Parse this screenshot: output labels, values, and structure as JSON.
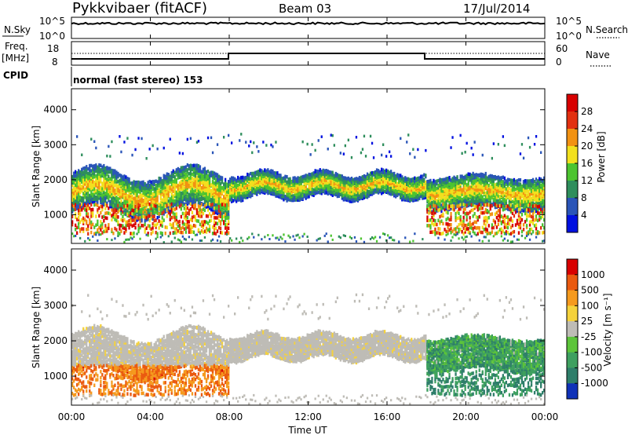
{
  "header": {
    "station": "Pykkvibaer (fitACF)",
    "beam": "Beam 03",
    "date": "17/Jul/2014"
  },
  "meta_panels": {
    "nsky": {
      "label": "N.Sky",
      "top": "10^5",
      "bottom": "10^0"
    },
    "nsearch": {
      "label": "N.Search",
      "top": "10^5",
      "bottom": "10^0"
    },
    "freq": {
      "label_line1": "Freq.",
      "label_line2": "[MHz]",
      "top": "18",
      "bottom": "8"
    },
    "nave": {
      "label": "Nave",
      "top": "60",
      "bottom": "0"
    },
    "cpid": {
      "label": "CPID",
      "text": "normal (fast stereo) 153"
    }
  },
  "chart_data": [
    {
      "type": "heatmap",
      "name": "power",
      "ylabel": "Slant Range [km]",
      "yticks": [
        "4000",
        "3000",
        "2000",
        "1000"
      ],
      "ylim": [
        180,
        4600
      ],
      "xlim": [
        0,
        24
      ],
      "colorbar": {
        "label": "Power [dB]",
        "ticks": [
          "28",
          "24",
          "20",
          "16",
          "12",
          "8",
          "4"
        ],
        "colors": [
          "#0010e0",
          "#2a55b8",
          "#2e8e5c",
          "#4cc430",
          "#f2e01e",
          "#f29212",
          "#e23010",
          "#d80000"
        ]
      },
      "echo_bands": [
        {
          "start_h": 0,
          "end_h": 24,
          "center_km": 1650,
          "width_km": 700
        },
        {
          "start_h": 0,
          "end_h": 8,
          "center_km": 900,
          "width_km": 350
        },
        {
          "start_h": 18,
          "end_h": 24,
          "center_km": 1000,
          "width_km": 400
        }
      ]
    },
    {
      "type": "heatmap",
      "name": "velocity",
      "ylabel": "Slant Range [km]",
      "yticks": [
        "4000",
        "3000",
        "2000",
        "1000"
      ],
      "ylim": [
        180,
        4600
      ],
      "xlim": [
        0,
        24
      ],
      "colorbar": {
        "label": "Velocity [m s⁻¹]",
        "ticks": [
          "1000",
          "500",
          "100",
          "25",
          "-25",
          "-100",
          "-500",
          "-1000"
        ],
        "colors": [
          "#1032b8",
          "#2e7e6a",
          "#3ea060",
          "#5cc43a",
          "#bebcb6",
          "#f5d23c",
          "#f59a1e",
          "#ea5a10",
          "#d80000"
        ]
      }
    }
  ],
  "xaxis": {
    "label": "Time UT",
    "ticks": [
      "00:00",
      "04:00",
      "08:00",
      "12:00",
      "16:00",
      "20:00",
      "00:00"
    ]
  }
}
